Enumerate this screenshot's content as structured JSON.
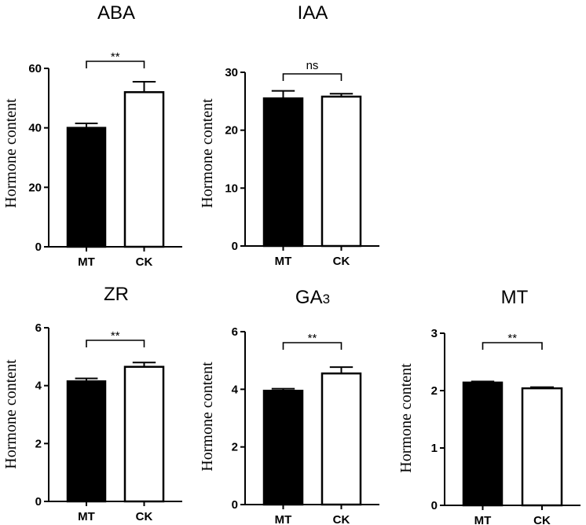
{
  "chart_data": [
    {
      "type": "bar",
      "title": "ABA",
      "title_main": "ABA",
      "title_sub": "",
      "ylabel": "Hormone content",
      "categories": [
        "MT",
        "CK"
      ],
      "values": [
        40,
        52
      ],
      "errors": [
        1.5,
        3.5
      ],
      "fills": [
        "#000000",
        "#ffffff"
      ],
      "ylim": [
        0,
        60
      ],
      "yticks": [
        0,
        20,
        40,
        60
      ],
      "significance": "**",
      "grid": false
    },
    {
      "type": "bar",
      "title": "IAA",
      "title_main": "IAA",
      "title_sub": "",
      "ylabel": "Hormone content",
      "categories": [
        "MT",
        "CK"
      ],
      "values": [
        25.5,
        25.8
      ],
      "errors": [
        1.3,
        0.5
      ],
      "fills": [
        "#000000",
        "#ffffff"
      ],
      "ylim": [
        0,
        30
      ],
      "yticks": [
        0,
        10,
        20,
        30
      ],
      "significance": "ns",
      "grid": false
    },
    {
      "type": "bar",
      "title": "ZR",
      "title_main": "ZR",
      "title_sub": "",
      "ylabel": "Hormone content",
      "categories": [
        "MT",
        "CK"
      ],
      "values": [
        4.15,
        4.65
      ],
      "errors": [
        0.1,
        0.15
      ],
      "fills": [
        "#000000",
        "#ffffff"
      ],
      "ylim": [
        0,
        6
      ],
      "yticks": [
        0,
        2,
        4,
        6
      ],
      "significance": "**",
      "grid": false
    },
    {
      "type": "bar",
      "title": "GA3",
      "title_main": "GA",
      "title_sub": "3",
      "ylabel": "Hormone content",
      "categories": [
        "MT",
        "CK"
      ],
      "values": [
        3.95,
        4.55
      ],
      "errors": [
        0.07,
        0.22
      ],
      "fills": [
        "#000000",
        "#ffffff"
      ],
      "ylim": [
        0,
        6
      ],
      "yticks": [
        0,
        2,
        4,
        6
      ],
      "significance": "**",
      "grid": false
    },
    {
      "type": "bar",
      "title": "MT",
      "title_main": "MT",
      "title_sub": "",
      "ylabel": "Hormone content",
      "categories": [
        "MT",
        "CK"
      ],
      "values": [
        2.14,
        2.04
      ],
      "errors": [
        0.02,
        0.02
      ],
      "fills": [
        "#000000",
        "#ffffff"
      ],
      "ylim": [
        0,
        3
      ],
      "yticks": [
        0,
        1,
        2,
        3
      ],
      "significance": "**",
      "grid": false
    }
  ]
}
